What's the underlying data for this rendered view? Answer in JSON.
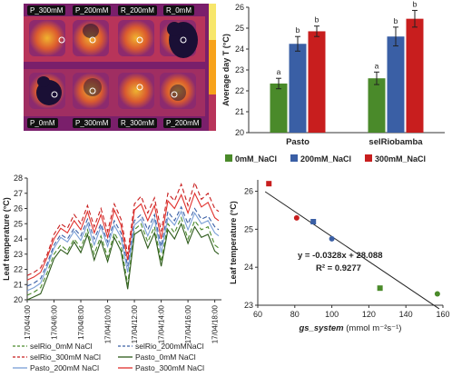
{
  "thermal_image": {
    "labels_top": [
      "P_300mM",
      "P_200mM",
      "R_200mM",
      "R_0mM"
    ],
    "labels_bottom": [
      "P_0mM",
      "P_300mM",
      "R_300mM",
      "P_200mM"
    ],
    "colors": {
      "bg": "#7a1f6b",
      "mid": "#d4463a",
      "hot": "#f7a21b",
      "leaf": "#1a0f35"
    }
  },
  "chart_data": [
    {
      "type": "bar",
      "categories": [
        "Pasto",
        "selRiobamba"
      ],
      "series": [
        {
          "name": "0mM_NaCl",
          "color": "#4a8a2a",
          "values": [
            22.35,
            22.6
          ],
          "errors": [
            0.25,
            0.3
          ],
          "letters": [
            "a",
            "a"
          ]
        },
        {
          "name": "200mM_NaCl",
          "color": "#3a5fa5",
          "values": [
            24.25,
            24.6
          ],
          "errors": [
            0.35,
            0.45
          ],
          "letters": [
            "b",
            "b"
          ]
        },
        {
          "name": "300mM_NaCl",
          "color": "#c81e1e",
          "values": [
            24.85,
            25.45
          ],
          "errors": [
            0.25,
            0.4
          ],
          "letters": [
            "b",
            "b"
          ]
        }
      ],
      "ylabel": "Average day T (°C)",
      "ylim": [
        20,
        26
      ],
      "yticks": [
        20,
        21,
        22,
        23,
        24,
        25,
        26
      ]
    },
    {
      "type": "line",
      "ylabel": "Leaf temperature (°C)",
      "ylim": [
        20,
        28
      ],
      "yticks": [
        20,
        21,
        22,
        23,
        24,
        25,
        26,
        27,
        28
      ],
      "xlim": [
        4,
        18.5
      ],
      "x_tick_values": [
        4,
        6,
        8,
        10,
        12,
        14,
        16,
        18
      ],
      "x_tick_labels": [
        "17/04/4:00",
        "17/04/6:00",
        "17/04/8:00",
        "17/04/10:00",
        "17/04/12:00",
        "17/04/14:00",
        "17/04/16:00",
        "17/04/18:00"
      ],
      "x": [
        4,
        4.5,
        5,
        5.5,
        6,
        6.5,
        7,
        7.5,
        8,
        8.5,
        9,
        9.5,
        10,
        10.5,
        11,
        11.5,
        12,
        12.5,
        13,
        13.5,
        14,
        14.5,
        15,
        15.5,
        16,
        16.5,
        17,
        17.5,
        18,
        18.3
      ],
      "series": [
        {
          "name": "selRio_0mM NaCl",
          "color": "#4a8a2a",
          "dash": "5,3",
          "values": [
            20.3,
            20.5,
            20.8,
            21.8,
            23.0,
            23.6,
            23.2,
            24.0,
            23.4,
            24.6,
            23.0,
            24.2,
            22.8,
            24.4,
            23.6,
            21.0,
            24.6,
            25.0,
            23.8,
            24.8,
            22.5,
            25.0,
            24.4,
            25.4,
            24.0,
            25.2,
            24.6,
            24.8,
            23.6,
            23.4
          ]
        },
        {
          "name": "selRio_200mMNaCl",
          "color": "#3a5fa5",
          "dash": "5,3",
          "values": [
            20.9,
            21.1,
            21.4,
            22.4,
            23.6,
            24.3,
            24.0,
            24.7,
            24.2,
            25.3,
            24.0,
            25.0,
            23.8,
            25.2,
            24.4,
            22.2,
            25.2,
            25.6,
            24.6,
            25.6,
            23.5,
            25.8,
            25.2,
            26.1,
            25.0,
            26.0,
            25.3,
            25.5,
            24.8,
            24.6
          ]
        },
        {
          "name": "selRio_300mM NaCl",
          "color": "#c81e1e",
          "dash": "5,3",
          "values": [
            21.6,
            21.8,
            22.1,
            23.0,
            24.3,
            25.0,
            24.7,
            25.6,
            25.0,
            26.2,
            24.8,
            26.0,
            24.5,
            26.3,
            25.3,
            23.0,
            26.3,
            26.8,
            25.7,
            26.7,
            24.5,
            27.0,
            26.5,
            27.6,
            26.2,
            27.7,
            26.6,
            27.0,
            26.0,
            25.8
          ]
        },
        {
          "name": "Pasto_0mM NaCl",
          "color": "#2d5a1a",
          "dash": "",
          "values": [
            20.0,
            20.2,
            20.4,
            21.5,
            22.7,
            23.3,
            23.0,
            23.8,
            23.1,
            24.3,
            22.6,
            23.9,
            22.5,
            24.1,
            23.2,
            20.7,
            24.3,
            24.6,
            23.4,
            24.4,
            22.2,
            24.6,
            24.0,
            25.0,
            23.7,
            24.8,
            24.1,
            24.3,
            23.2,
            23.0
          ]
        },
        {
          "name": "Pasto_200mM NaCl",
          "color": "#7a9fd6",
          "dash": "",
          "values": [
            20.6,
            20.8,
            21.1,
            22.2,
            23.4,
            24.1,
            23.8,
            24.5,
            23.9,
            25.0,
            23.6,
            24.8,
            23.5,
            24.9,
            24.1,
            21.8,
            24.9,
            25.3,
            24.2,
            25.3,
            23.1,
            25.4,
            24.9,
            25.8,
            24.6,
            25.7,
            25.0,
            25.2,
            24.4,
            24.2
          ]
        },
        {
          "name": "Pasto_300mM NaCl",
          "color": "#e0302c",
          "dash": "",
          "values": [
            21.3,
            21.5,
            21.8,
            22.8,
            24.0,
            24.7,
            24.4,
            25.2,
            24.6,
            25.8,
            24.4,
            25.6,
            24.1,
            25.9,
            24.9,
            22.6,
            25.9,
            26.3,
            25.2,
            26.2,
            24.0,
            26.5,
            26.0,
            26.9,
            25.7,
            27.0,
            26.1,
            26.4,
            25.4,
            25.2
          ]
        }
      ]
    },
    {
      "type": "scatter",
      "xlabel_italic": "gs_system",
      "xlabel_units": "(mmol m⁻²s⁻¹)",
      "ylabel": "Leaf temperature (°C)",
      "xlim": [
        60,
        160
      ],
      "ylim": [
        23,
        26.3
      ],
      "xticks": [
        60,
        80,
        100,
        120,
        140,
        160
      ],
      "yticks": [
        23,
        24,
        25,
        26
      ],
      "points": [
        {
          "x": 66,
          "y": 26.2,
          "color": "#c81e1e",
          "marker": "square"
        },
        {
          "x": 81,
          "y": 25.3,
          "color": "#c81e1e",
          "marker": "circle"
        },
        {
          "x": 90,
          "y": 25.2,
          "color": "#3a5fa5",
          "marker": "square"
        },
        {
          "x": 100,
          "y": 24.75,
          "color": "#3a5fa5",
          "marker": "circle"
        },
        {
          "x": 126,
          "y": 23.45,
          "color": "#4a8a2a",
          "marker": "square"
        },
        {
          "x": 157,
          "y": 23.3,
          "color": "#4a8a2a",
          "marker": "circle"
        }
      ],
      "trendline": {
        "slope": -0.0328,
        "intercept": 28.088
      },
      "equation": "y = -0.0328x + 28.088",
      "r2_label": "R² = 0.9277"
    }
  ]
}
